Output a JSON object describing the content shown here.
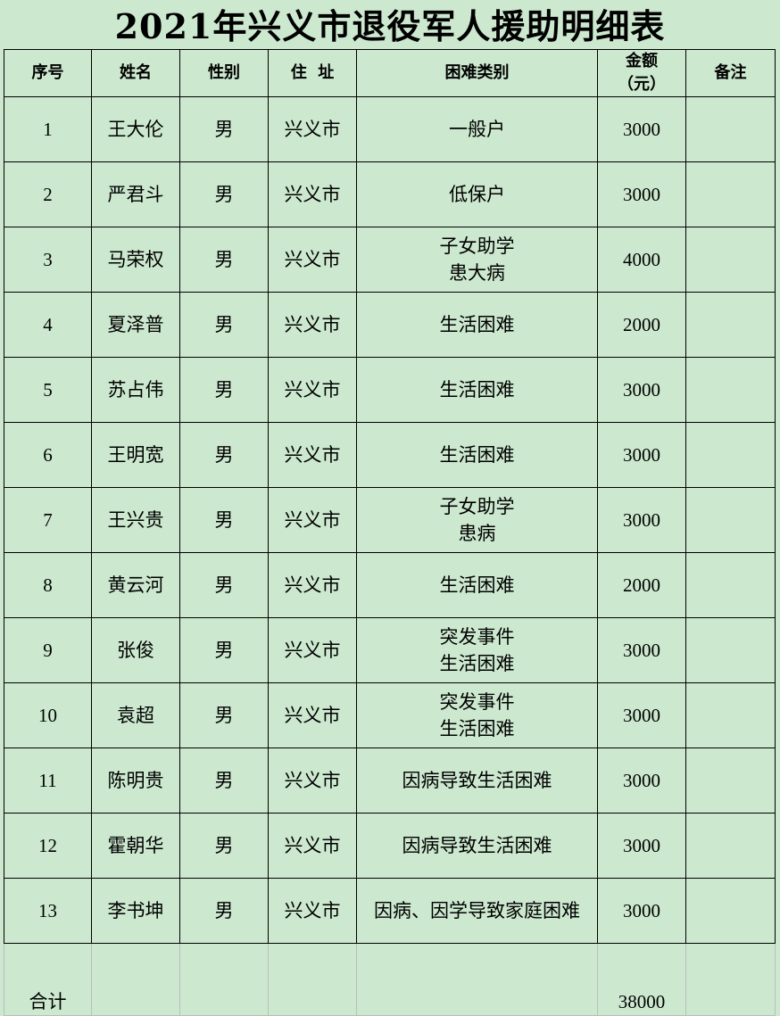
{
  "title": "2021年兴义市退役军人援助明细表",
  "headers": [
    "序号",
    "姓名",
    "性别",
    "住  址",
    "困难类别",
    "金额（元）",
    "备注"
  ],
  "rows": [
    {
      "no": "1",
      "name": "王大伦",
      "gender": "男",
      "address": "兴义市",
      "category": "一般户",
      "amount": "3000",
      "note": ""
    },
    {
      "no": "2",
      "name": "严君斗",
      "gender": "男",
      "address": "兴义市",
      "category": "低保户",
      "amount": "3000",
      "note": ""
    },
    {
      "no": "3",
      "name": "马荣权",
      "gender": "男",
      "address": "兴义市",
      "category": "子女助学\n患大病",
      "amount": "4000",
      "note": ""
    },
    {
      "no": "4",
      "name": "夏泽普",
      "gender": "男",
      "address": "兴义市",
      "category": "生活困难",
      "amount": "2000",
      "note": ""
    },
    {
      "no": "5",
      "name": "苏占伟",
      "gender": "男",
      "address": "兴义市",
      "category": "生活困难",
      "amount": "3000",
      "note": ""
    },
    {
      "no": "6",
      "name": "王明宽",
      "gender": "男",
      "address": "兴义市",
      "category": "生活困难",
      "amount": "3000",
      "note": ""
    },
    {
      "no": "7",
      "name": "王兴贵",
      "gender": "男",
      "address": "兴义市",
      "category": "子女助学\n患病",
      "amount": "3000",
      "note": ""
    },
    {
      "no": "8",
      "name": "黄云河",
      "gender": "男",
      "address": "兴义市",
      "category": "生活困难",
      "amount": "2000",
      "note": ""
    },
    {
      "no": "9",
      "name": "张俊",
      "gender": "男",
      "address": "兴义市",
      "category": "突发事件\n生活困难",
      "amount": "3000",
      "note": ""
    },
    {
      "no": "10",
      "name": "袁超",
      "gender": "男",
      "address": "兴义市",
      "category": "突发事件\n生活困难",
      "amount": "3000",
      "note": ""
    },
    {
      "no": "11",
      "name": "陈明贵",
      "gender": "男",
      "address": "兴义市",
      "category": "因病导致生活困难",
      "amount": "3000",
      "note": ""
    },
    {
      "no": "12",
      "name": "霍朝华",
      "gender": "男",
      "address": "兴义市",
      "category": "因病导致生活困难",
      "amount": "3000",
      "note": ""
    },
    {
      "no": "13",
      "name": "李书坤",
      "gender": "男",
      "address": "兴义市",
      "category": "因病、因学导致家庭困难",
      "amount": "3000",
      "note": ""
    }
  ],
  "total": {
    "label": "合计",
    "amount": "38000"
  },
  "colors": {
    "background": "#cce8cf",
    "border": "#000000"
  }
}
